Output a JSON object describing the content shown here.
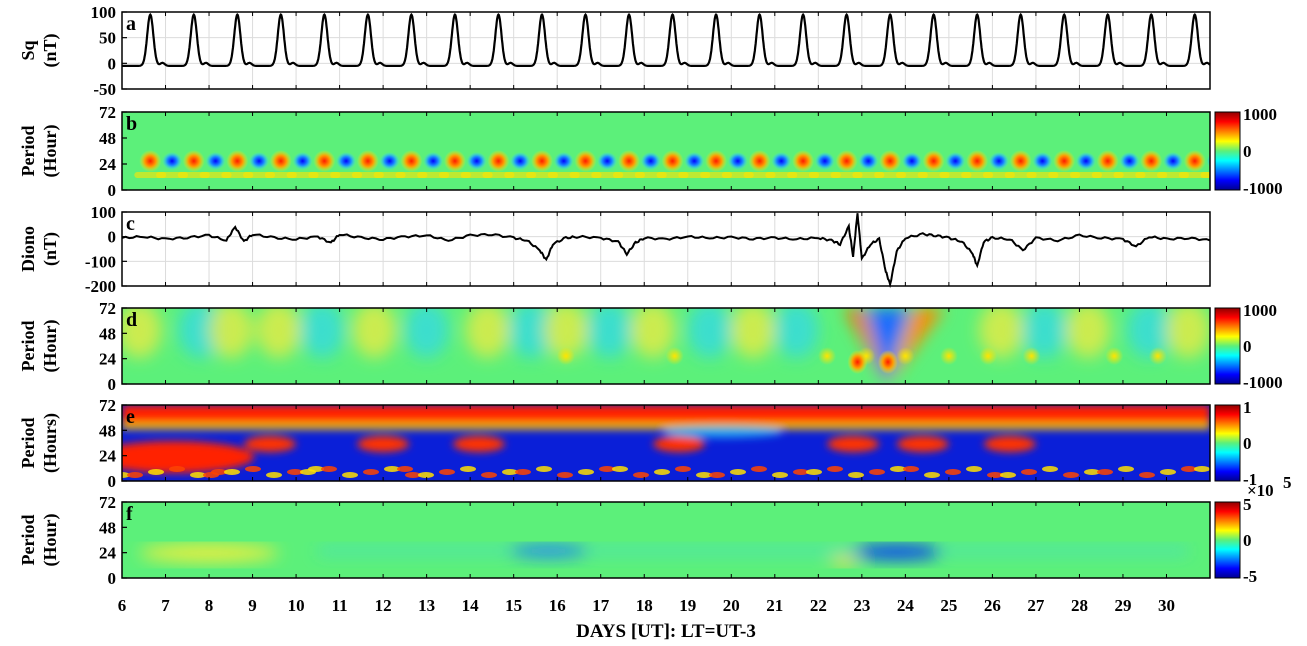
{
  "chart_data": {
    "type": "line",
    "xlabel": "DAYS [UT]: LT=UT-3",
    "xlim": [
      6,
      31
    ],
    "xticks": [
      6,
      7,
      8,
      9,
      10,
      11,
      12,
      13,
      14,
      15,
      16,
      17,
      18,
      19,
      20,
      21,
      22,
      23,
      24,
      25,
      26,
      27,
      28,
      29,
      30
    ],
    "panels": [
      {
        "id": "a",
        "type": "line",
        "ylabel": [
          "Sq",
          "(nT)"
        ],
        "ylim": [
          -50,
          100
        ],
        "yticks": [
          100,
          50,
          0,
          -50
        ],
        "series": [
          {
            "pattern": "daily-periodic",
            "peak_days": [
              6.65,
              7.65,
              8.65,
              9.65,
              10.65,
              11.65,
              12.65,
              13.65,
              14.65,
              15.65,
              16.65,
              17.65,
              18.65,
              19.65,
              20.65,
              21.65,
              22.65,
              23.65,
              24.65,
              25.65,
              26.65,
              27.65,
              28.65,
              29.65,
              30.65
            ],
            "peak_value": 95,
            "night_value": -5
          }
        ]
      },
      {
        "id": "b",
        "type": "heatmap",
        "ylabel": [
          "Period",
          "(Hour)"
        ],
        "ylim": [
          0,
          72
        ],
        "yticks": [
          72,
          48,
          24,
          0
        ],
        "colorbar": {
          "ticks": [
            "1000",
            "0",
            "-1000"
          ]
        }
      },
      {
        "id": "c",
        "type": "line",
        "ylabel": [
          "Diono",
          "(nT)"
        ],
        "ylim": [
          -200,
          100
        ],
        "yticks": [
          100,
          0,
          -100,
          -200
        ],
        "series": [
          {
            "points": [
              [
                6.0,
                -5
              ],
              [
                6.5,
                0
              ],
              [
                7.0,
                -10
              ],
              [
                7.5,
                -3
              ],
              [
                8.0,
                5
              ],
              [
                8.4,
                -15
              ],
              [
                8.6,
                40
              ],
              [
                8.8,
                -20
              ],
              [
                9.0,
                10
              ],
              [
                9.5,
                -5
              ],
              [
                10.0,
                -10
              ],
              [
                10.5,
                0
              ],
              [
                10.8,
                -25
              ],
              [
                11.0,
                10
              ],
              [
                11.5,
                -5
              ],
              [
                12.0,
                -10
              ],
              [
                12.5,
                0
              ],
              [
                13.0,
                5
              ],
              [
                13.5,
                -15
              ],
              [
                14.0,
                5
              ],
              [
                14.5,
                10
              ],
              [
                15.0,
                -5
              ],
              [
                15.3,
                -15
              ],
              [
                15.6,
                -55
              ],
              [
                15.75,
                -95
              ],
              [
                15.9,
                -30
              ],
              [
                16.2,
                -5
              ],
              [
                16.5,
                0
              ],
              [
                17.0,
                -5
              ],
              [
                17.4,
                -20
              ],
              [
                17.6,
                -70
              ],
              [
                17.8,
                -25
              ],
              [
                18.0,
                -5
              ],
              [
                18.5,
                -10
              ],
              [
                19.0,
                0
              ],
              [
                19.5,
                -5
              ],
              [
                20.0,
                -3
              ],
              [
                20.5,
                -8
              ],
              [
                21.0,
                -5
              ],
              [
                21.5,
                -10
              ],
              [
                22.0,
                -5
              ],
              [
                22.3,
                -15
              ],
              [
                22.5,
                -30
              ],
              [
                22.7,
                40
              ],
              [
                22.8,
                -80
              ],
              [
                22.9,
                95
              ],
              [
                23.0,
                -90
              ],
              [
                23.2,
                -30
              ],
              [
                23.4,
                -10
              ],
              [
                23.55,
                -140
              ],
              [
                23.65,
                -195
              ],
              [
                23.8,
                -60
              ],
              [
                24.0,
                -5
              ],
              [
                24.4,
                10
              ],
              [
                24.7,
                5
              ],
              [
                25.0,
                -5
              ],
              [
                25.3,
                -20
              ],
              [
                25.55,
                -70
              ],
              [
                25.65,
                -120
              ],
              [
                25.8,
                -20
              ],
              [
                26.0,
                -5
              ],
              [
                26.4,
                -10
              ],
              [
                26.7,
                -55
              ],
              [
                27.0,
                -5
              ],
              [
                27.5,
                -15
              ],
              [
                28.0,
                5
              ],
              [
                28.5,
                -5
              ],
              [
                29.0,
                -10
              ],
              [
                29.3,
                -40
              ],
              [
                29.6,
                0
              ],
              [
                30.0,
                -10
              ],
              [
                30.5,
                -5
              ],
              [
                31.0,
                -15
              ]
            ]
          }
        ]
      },
      {
        "id": "d",
        "type": "heatmap",
        "ylabel": [
          "Period",
          "(Hour)"
        ],
        "ylim": [
          0,
          72
        ],
        "yticks": [
          72,
          48,
          24,
          0
        ],
        "colorbar": {
          "ticks": [
            "1000",
            "0",
            "-1000"
          ]
        }
      },
      {
        "id": "e",
        "type": "heatmap",
        "ylabel": [
          "Period",
          "(Hours)"
        ],
        "ylim": [
          0,
          72
        ],
        "yticks": [
          72,
          48,
          24,
          0
        ],
        "colorbar": {
          "ticks": [
            "1",
            "0",
            "-1"
          ]
        }
      },
      {
        "id": "f",
        "type": "heatmap",
        "ylabel": [
          "Period",
          "(Hour)"
        ],
        "ylim": [
          0,
          72
        ],
        "yticks": [
          72,
          48,
          24,
          0
        ],
        "colorbar": {
          "ticks": [
            "5",
            "0",
            "-5"
          ],
          "multiplier": "×10",
          "exponent": "5"
        }
      }
    ]
  }
}
